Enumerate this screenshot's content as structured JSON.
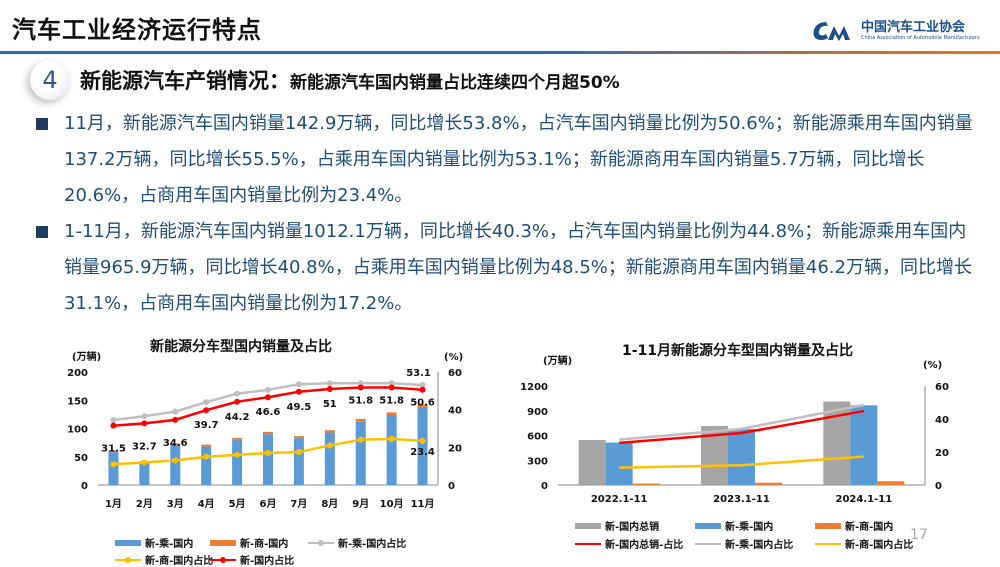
{
  "header": {
    "title": "汽车工业经济运行特点",
    "logo_cn": "中国汽车工业协会",
    "logo_en": "China Association of Automobile Manufacturers"
  },
  "section": {
    "number": "4",
    "title": "新能源汽车产销情况：",
    "subtitle": "新能源汽车国内销量占比连续四个月超50%"
  },
  "bullets": [
    {
      "text": "11月，新能源汽车国内销量142.9万辆，同比增长53.8%，占汽车国内销量比例为50.6%；新能源乘用车国内销量137.2万辆，同比增长55.5%，占乘用车国内销量比例为53.1%；新能源商用车国内销量5.7万辆，同比增长20.6%，占商用车国内销量比例为23.4%。"
    },
    {
      "text": "1-11月，新能源汽车国内销量1012.1万辆，同比增长40.3%，占汽车国内销量比例为44.8%；新能源乘用车国内销量965.9万辆，同比增长40.8%，占乘用车国内销量比例为48.5%；新能源商用车国内销量46.2万辆，同比增长31.1%，占商用车国内销量比例为17.2%。"
    }
  ],
  "page_number": "17",
  "chart_data": [
    {
      "type": "bar",
      "title": "新能源分车型国内销量及占比",
      "ylabel": "(万辆)",
      "y2label": "(%)",
      "ylim": [
        0,
        200
      ],
      "y2lim": [
        0,
        60
      ],
      "yticks": [
        "0",
        "50",
        "100",
        "150",
        "200"
      ],
      "y2ticks": [
        "0",
        "20",
        "40",
        "60"
      ],
      "categories": [
        "1月",
        "2月",
        "3月",
        "4月",
        "5月",
        "6月",
        "7月",
        "8月",
        "9月",
        "10月",
        "11月"
      ],
      "series": [
        {
          "name": "新-乘-国内",
          "type": "bar-stacked",
          "color": "#5b9bd5",
          "values": [
            58,
            40,
            70,
            68,
            80,
            90,
            83,
            93,
            112,
            123,
            137.2
          ]
        },
        {
          "name": "新-商-国内",
          "type": "bar-stacked",
          "color": "#ed7d31",
          "values": [
            2.5,
            2.2,
            3.5,
            3.5,
            3.5,
            4,
            3.5,
            4,
            5,
            5.5,
            5.7
          ]
        },
        {
          "name": "新-乘-国内占比",
          "type": "line",
          "axis": "right",
          "color": "#bfbfbf",
          "values": [
            34.5,
            36.5,
            39,
            44,
            48.5,
            50.5,
            53.5,
            54,
            54,
            54,
            53.1
          ]
        },
        {
          "name": "新-商-国内占比",
          "type": "line",
          "axis": "right",
          "color": "#ffc000",
          "values": [
            11,
            12,
            13,
            15,
            16,
            17,
            17.5,
            21,
            24,
            24.5,
            23.4
          ]
        },
        {
          "name": "新-国内占比",
          "type": "line",
          "axis": "right",
          "color": "#ff0000",
          "values": [
            31.5,
            32.7,
            34.6,
            39.7,
            44.2,
            46.6,
            49.5,
            51,
            51.8,
            51.8,
            50.6
          ]
        }
      ],
      "data_labels": [
        "31.5",
        "32.7",
        "34.6",
        "39.7",
        "44.2",
        "46.6",
        "49.5",
        "51",
        "51.8",
        "51.8",
        "50.6"
      ],
      "extra_labels": {
        "top": "53.1",
        "bottom": "23.4"
      },
      "legend_position": "bottom"
    },
    {
      "type": "bar",
      "title": "1-11月新能源分车型国内销量及占比",
      "ylabel": "(万辆)",
      "y2label": "(%)",
      "ylim": [
        0,
        1200
      ],
      "y2lim": [
        0,
        60
      ],
      "yticks": [
        "0",
        "300",
        "600",
        "900",
        "1200"
      ],
      "y2ticks": [
        "0",
        "20",
        "40",
        "60"
      ],
      "categories": [
        "2022.1-11",
        "2023.1-11",
        "2024.1-11"
      ],
      "series": [
        {
          "name": "新-国内总销",
          "type": "bar",
          "color": "#a5a5a5",
          "values": [
            545,
            715,
            1012.1
          ]
        },
        {
          "name": "新-乘-国内",
          "type": "bar",
          "color": "#5b9bd5",
          "values": [
            515,
            680,
            965.9
          ]
        },
        {
          "name": "新-商-国内",
          "type": "bar",
          "color": "#ed7d31",
          "values": [
            18,
            28,
            46.2
          ]
        },
        {
          "name": "新-国内总销-占比",
          "type": "line",
          "axis": "right",
          "color": "#ff0000",
          "values": [
            25.5,
            31.5,
            44.8
          ]
        },
        {
          "name": "新-乘-国内占比",
          "type": "line",
          "axis": "right",
          "color": "#bfbfbf",
          "values": [
            27.5,
            34,
            48.5
          ]
        },
        {
          "name": "新-商-国内占比",
          "type": "line",
          "axis": "right",
          "color": "#ffc000",
          "values": [
            10.5,
            12,
            17.2
          ]
        }
      ],
      "legend_position": "bottom"
    }
  ]
}
